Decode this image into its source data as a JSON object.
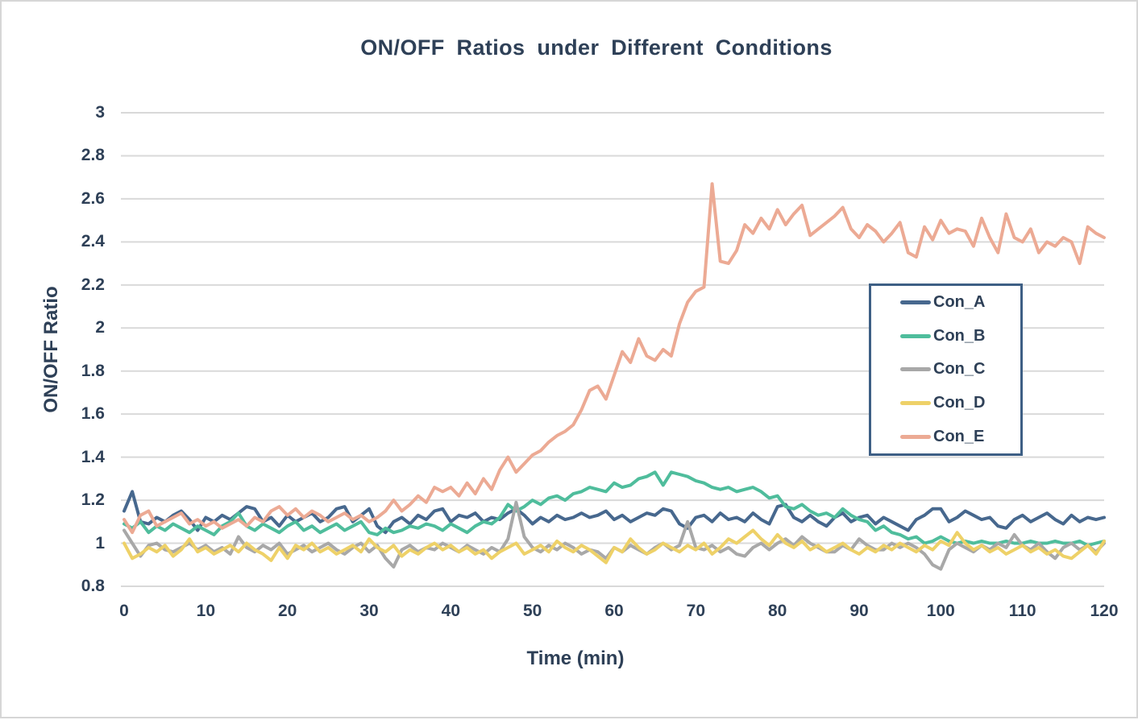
{
  "frame": {
    "background": "#ffffff",
    "border_color": "#d6d6d6"
  },
  "chart_data": {
    "type": "line",
    "title": "ON/OFF Ratios under Different Conditions",
    "xlabel": "Time (min)",
    "ylabel": "ON/OFF Ratio",
    "xlim": [
      0,
      120
    ],
    "ylim": [
      0.8,
      3.0
    ],
    "x_ticks": [
      0,
      10,
      20,
      30,
      40,
      50,
      60,
      70,
      80,
      90,
      100,
      110,
      120
    ],
    "y_ticks": [
      3,
      2.8,
      2.6,
      2.4,
      2.2,
      2,
      1.8,
      1.6,
      1.4,
      1.2,
      1,
      0.8
    ],
    "grid": "horizontal",
    "gridline_color": "#d9d9d9",
    "text_color": "#2e4057",
    "legend_position": "right-middle",
    "legend_border_color": "#3e5f85",
    "x": [
      0,
      1,
      2,
      3,
      4,
      5,
      6,
      7,
      8,
      9,
      10,
      11,
      12,
      13,
      14,
      15,
      16,
      17,
      18,
      19,
      20,
      21,
      22,
      23,
      24,
      25,
      26,
      27,
      28,
      29,
      30,
      31,
      32,
      33,
      34,
      35,
      36,
      37,
      38,
      39,
      40,
      41,
      42,
      43,
      44,
      45,
      46,
      47,
      48,
      49,
      50,
      51,
      52,
      53,
      54,
      55,
      56,
      57,
      58,
      59,
      60,
      61,
      62,
      63,
      64,
      65,
      66,
      67,
      68,
      69,
      70,
      71,
      72,
      73,
      74,
      75,
      76,
      77,
      78,
      79,
      80,
      81,
      82,
      83,
      84,
      85,
      86,
      87,
      88,
      89,
      90,
      91,
      92,
      93,
      94,
      95,
      96,
      97,
      98,
      99,
      100,
      101,
      102,
      103,
      104,
      105,
      106,
      107,
      108,
      109,
      110,
      111,
      112,
      113,
      114,
      115,
      116,
      117,
      118,
      119,
      120
    ],
    "series": [
      {
        "name": "Con_A",
        "color": "#47688e",
        "values": [
          1.15,
          1.24,
          1.1,
          1.09,
          1.12,
          1.1,
          1.13,
          1.15,
          1.11,
          1.06,
          1.12,
          1.1,
          1.13,
          1.11,
          1.14,
          1.17,
          1.16,
          1.1,
          1.12,
          1.08,
          1.13,
          1.1,
          1.12,
          1.14,
          1.1,
          1.12,
          1.16,
          1.17,
          1.1,
          1.13,
          1.16,
          1.08,
          1.05,
          1.1,
          1.12,
          1.09,
          1.13,
          1.11,
          1.15,
          1.16,
          1.1,
          1.13,
          1.12,
          1.14,
          1.1,
          1.12,
          1.11,
          1.14,
          1.16,
          1.13,
          1.09,
          1.12,
          1.1,
          1.13,
          1.11,
          1.12,
          1.14,
          1.12,
          1.13,
          1.15,
          1.11,
          1.13,
          1.1,
          1.12,
          1.14,
          1.13,
          1.16,
          1.15,
          1.09,
          1.07,
          1.12,
          1.13,
          1.1,
          1.14,
          1.11,
          1.12,
          1.1,
          1.14,
          1.11,
          1.09,
          1.17,
          1.18,
          1.12,
          1.1,
          1.13,
          1.1,
          1.08,
          1.12,
          1.14,
          1.1,
          1.12,
          1.13,
          1.09,
          1.12,
          1.1,
          1.08,
          1.06,
          1.11,
          1.13,
          1.16,
          1.16,
          1.1,
          1.12,
          1.15,
          1.13,
          1.11,
          1.12,
          1.08,
          1.07,
          1.11,
          1.13,
          1.1,
          1.12,
          1.14,
          1.11,
          1.09,
          1.13,
          1.1,
          1.12,
          1.11,
          1.12
        ]
      },
      {
        "name": "Con_B",
        "color": "#4fbd9c",
        "values": [
          1.09,
          1.07,
          1.1,
          1.05,
          1.08,
          1.06,
          1.09,
          1.07,
          1.05,
          1.08,
          1.06,
          1.04,
          1.08,
          1.1,
          1.14,
          1.08,
          1.06,
          1.09,
          1.07,
          1.05,
          1.08,
          1.1,
          1.06,
          1.08,
          1.05,
          1.07,
          1.09,
          1.06,
          1.08,
          1.1,
          1.05,
          1.04,
          1.07,
          1.05,
          1.06,
          1.08,
          1.07,
          1.09,
          1.08,
          1.06,
          1.09,
          1.07,
          1.05,
          1.08,
          1.1,
          1.09,
          1.12,
          1.18,
          1.15,
          1.17,
          1.2,
          1.18,
          1.21,
          1.22,
          1.2,
          1.23,
          1.24,
          1.26,
          1.25,
          1.24,
          1.28,
          1.26,
          1.27,
          1.3,
          1.31,
          1.33,
          1.27,
          1.33,
          1.32,
          1.31,
          1.29,
          1.28,
          1.26,
          1.25,
          1.26,
          1.24,
          1.25,
          1.26,
          1.24,
          1.21,
          1.22,
          1.17,
          1.16,
          1.18,
          1.15,
          1.13,
          1.14,
          1.12,
          1.16,
          1.13,
          1.11,
          1.1,
          1.06,
          1.08,
          1.05,
          1.04,
          1.02,
          1.03,
          1.0,
          1.01,
          1.03,
          1.01,
          1.0,
          1.01,
          1.0,
          1.01,
          1.0,
          1.0,
          1.01,
          1.0,
          1.0,
          1.01,
          1.0,
          1.0,
          1.01,
          1.0,
          1.0,
          1.01,
          0.99,
          1.0,
          1.01
        ]
      },
      {
        "name": "Con_C",
        "color": "#a8a8a8",
        "values": [
          1.06,
          1.0,
          0.94,
          0.99,
          1.0,
          0.97,
          0.96,
          0.98,
          1.0,
          0.97,
          0.99,
          0.96,
          0.98,
          0.95,
          1.03,
          0.98,
          0.96,
          0.99,
          0.97,
          1.0,
          0.95,
          0.97,
          0.99,
          0.96,
          0.98,
          1.0,
          0.97,
          0.95,
          0.98,
          1.0,
          0.96,
          0.99,
          0.93,
          0.89,
          0.97,
          0.99,
          0.96,
          0.98,
          0.97,
          1.0,
          0.98,
          0.96,
          0.99,
          0.97,
          0.95,
          0.98,
          0.96,
          1.02,
          1.19,
          1.03,
          0.98,
          0.96,
          0.99,
          0.97,
          1.0,
          0.98,
          0.95,
          0.97,
          0.96,
          0.93,
          0.98,
          0.96,
          0.99,
          0.97,
          0.95,
          0.98,
          1.0,
          0.97,
          0.99,
          1.1,
          0.98,
          0.97,
          0.99,
          0.96,
          0.98,
          0.95,
          0.94,
          0.98,
          1.0,
          0.97,
          1.0,
          1.02,
          0.99,
          1.03,
          1.0,
          0.98,
          0.96,
          0.96,
          0.99,
          0.97,
          1.02,
          0.99,
          0.97,
          0.97,
          1.0,
          0.98,
          1.0,
          0.98,
          0.95,
          0.9,
          0.88,
          0.97,
          1.0,
          0.98,
          0.96,
          0.99,
          0.97,
          1.0,
          0.98,
          1.04,
          0.99,
          0.97,
          1.0,
          0.96,
          0.93,
          0.98,
          1.0,
          0.97,
          0.99,
          0.96,
          1.0
        ]
      },
      {
        "name": "Con_D",
        "color": "#eed168",
        "values": [
          1.0,
          0.93,
          0.95,
          0.98,
          0.96,
          0.99,
          0.94,
          0.97,
          1.02,
          0.96,
          0.98,
          0.95,
          0.97,
          0.99,
          0.96,
          1.0,
          0.97,
          0.95,
          0.92,
          0.98,
          0.93,
          0.99,
          0.97,
          1.0,
          0.96,
          0.98,
          0.95,
          0.97,
          0.99,
          0.96,
          1.02,
          0.98,
          0.96,
          0.99,
          0.94,
          0.97,
          0.95,
          0.98,
          1.0,
          0.97,
          0.99,
          0.96,
          0.98,
          0.95,
          0.97,
          0.93,
          0.96,
          0.98,
          1.0,
          0.95,
          0.97,
          0.99,
          0.96,
          1.01,
          0.98,
          0.96,
          0.99,
          0.97,
          0.94,
          0.91,
          0.98,
          0.96,
          1.02,
          0.98,
          0.95,
          0.97,
          1.0,
          0.98,
          0.96,
          0.99,
          0.97,
          1.0,
          0.95,
          0.98,
          1.02,
          1.0,
          1.03,
          1.06,
          1.02,
          0.99,
          1.04,
          1.0,
          0.98,
          1.01,
          0.97,
          0.99,
          0.96,
          0.98,
          1.0,
          0.97,
          0.95,
          0.98,
          0.96,
          0.99,
          0.97,
          1.0,
          0.98,
          0.96,
          0.99,
          0.97,
          1.01,
          0.99,
          1.05,
          1.0,
          0.97,
          0.99,
          0.96,
          0.98,
          0.95,
          0.97,
          0.99,
          0.96,
          0.98,
          0.95,
          0.97,
          0.94,
          0.93,
          0.96,
          0.99,
          0.95,
          1.01
        ]
      },
      {
        "name": "Con_E",
        "color": "#ecaa94",
        "values": [
          1.11,
          1.05,
          1.13,
          1.15,
          1.08,
          1.1,
          1.12,
          1.14,
          1.09,
          1.11,
          1.08,
          1.1,
          1.07,
          1.09,
          1.11,
          1.08,
          1.12,
          1.1,
          1.15,
          1.17,
          1.13,
          1.16,
          1.12,
          1.15,
          1.13,
          1.1,
          1.12,
          1.14,
          1.11,
          1.13,
          1.1,
          1.12,
          1.15,
          1.2,
          1.15,
          1.18,
          1.22,
          1.19,
          1.26,
          1.24,
          1.26,
          1.22,
          1.28,
          1.23,
          1.3,
          1.25,
          1.34,
          1.4,
          1.33,
          1.37,
          1.41,
          1.43,
          1.47,
          1.5,
          1.52,
          1.55,
          1.62,
          1.71,
          1.73,
          1.67,
          1.78,
          1.89,
          1.84,
          1.95,
          1.87,
          1.85,
          1.9,
          1.87,
          2.02,
          2.12,
          2.17,
          2.19,
          2.67,
          2.31,
          2.3,
          2.36,
          2.48,
          2.44,
          2.51,
          2.46,
          2.55,
          2.48,
          2.53,
          2.57,
          2.43,
          2.46,
          2.49,
          2.52,
          2.56,
          2.46,
          2.42,
          2.48,
          2.45,
          2.4,
          2.44,
          2.49,
          2.35,
          2.33,
          2.47,
          2.41,
          2.5,
          2.44,
          2.46,
          2.45,
          2.38,
          2.51,
          2.42,
          2.35,
          2.53,
          2.42,
          2.4,
          2.46,
          2.35,
          2.4,
          2.38,
          2.42,
          2.4,
          2.3,
          2.47,
          2.44,
          2.42
        ]
      }
    ]
  }
}
